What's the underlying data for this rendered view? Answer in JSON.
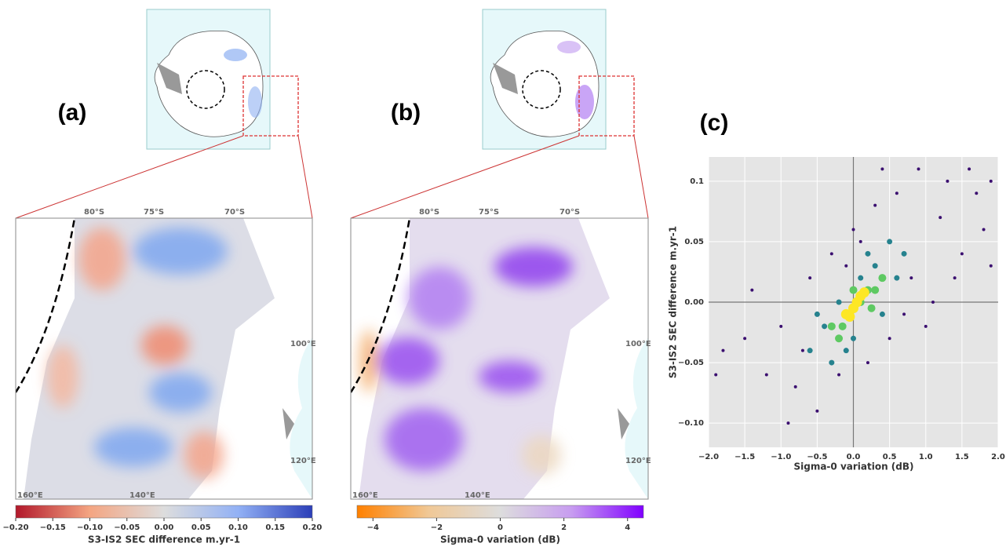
{
  "panels": [
    "(a)",
    "(b)",
    "(c)"
  ],
  "maps": [
    {
      "lat_labels": [
        "80°S",
        "75°S",
        "70°S"
      ],
      "lon_labels": [
        "100°E",
        "120°E",
        "160°E",
        "140°E"
      ],
      "colorbar": {
        "label": "S3-IS2 SEC difference m.yr-1",
        "lim": [
          -0.2,
          0.2
        ],
        "colors": [
          "#b2182b",
          "#f4a582",
          "#dddddd",
          "#92b1f5",
          "#2c3fb8"
        ],
        "ticks": [
          {
            "value": -0.2,
            "label": "−0.20"
          },
          {
            "value": -0.15,
            "label": "−0.15"
          },
          {
            "value": -0.1,
            "label": "−0.10"
          },
          {
            "value": -0.05,
            "label": "−0.05"
          },
          {
            "value": 0,
            "label": "0.00"
          },
          {
            "value": 0.05,
            "label": "0.05"
          },
          {
            "value": 0.1,
            "label": "0.10"
          },
          {
            "value": 0.15,
            "label": "0.15"
          },
          {
            "value": 0.2,
            "label": "0.20"
          }
        ]
      }
    },
    {
      "lat_labels": [
        "80°S",
        "75°S",
        "70°S"
      ],
      "lon_labels": [
        "100°E",
        "120°E",
        "160°E",
        "140°E"
      ],
      "colorbar": {
        "label": "Sigma-0 variation (dB)",
        "lim": [
          -4.5,
          4.5
        ],
        "colors": [
          "#ff8000",
          "#f0c896",
          "#dddddd",
          "#c79cf0",
          "#8000ff"
        ],
        "ticks": [
          {
            "value": -4,
            "label": "−4"
          },
          {
            "value": -2,
            "label": "−2"
          },
          0,
          2,
          4
        ]
      }
    }
  ],
  "chart_data": {
    "type": "scatter",
    "xlabel": "Sigma-0 variation (dB)",
    "ylabel": "S3-IS2 SEC difference m.yr-1",
    "xlim": [
      -2,
      2
    ],
    "ylim": [
      -0.12,
      0.12
    ],
    "grid": true,
    "hline": 0,
    "vline": 0,
    "xticks": [
      {
        "value": -2,
        "label": "−2.0"
      },
      {
        "value": -1.5,
        "label": "−1.5"
      },
      {
        "value": -1,
        "label": "−1.0"
      },
      {
        "value": -0.5,
        "label": "−0.5"
      },
      {
        "value": 0,
        "label": "0.0"
      },
      0.5,
      {
        "value": 1,
        "label": "1.0"
      },
      1.5,
      {
        "value": 2,
        "label": "2.0"
      }
    ],
    "yticks": [
      {
        "value": -0.1,
        "label": "−0.10"
      },
      {
        "value": -0.05,
        "label": "−0.05"
      },
      {
        "value": 0,
        "label": "0.00"
      },
      0.05,
      0.1
    ],
    "series": [
      {
        "color": "#3b0f70",
        "x": [
          -1.8,
          -1.5,
          -1.2,
          -1.0,
          -0.8,
          -0.6,
          -0.5,
          -0.3,
          -0.2,
          0.0,
          0.2,
          0.3,
          0.5,
          0.6,
          0.8,
          0.9,
          1.0,
          1.2,
          1.3,
          1.5,
          1.6,
          1.8,
          1.9,
          -1.9,
          -1.4,
          -0.9,
          1.1,
          1.7,
          0.4,
          -0.1,
          -0.7,
          0.7,
          1.4,
          1.9,
          0.1
        ],
        "y": [
          -0.04,
          -0.03,
          -0.06,
          -0.02,
          -0.07,
          0.02,
          -0.09,
          0.04,
          -0.06,
          0.06,
          -0.05,
          0.08,
          -0.03,
          0.09,
          0.02,
          0.11,
          -0.02,
          0.07,
          0.1,
          0.04,
          0.11,
          0.06,
          0.03,
          -0.06,
          0.01,
          -0.1,
          0.0,
          0.09,
          0.11,
          0.03,
          -0.04,
          -0.01,
          0.02,
          0.1,
          0.05
        ]
      },
      {
        "color": "#26828e",
        "x": [
          -0.6,
          -0.4,
          -0.3,
          -0.2,
          0.0,
          0.1,
          0.3,
          0.4,
          0.6,
          0.7,
          -0.5,
          0.2,
          0.5,
          -0.1
        ],
        "y": [
          -0.04,
          -0.02,
          -0.05,
          0.0,
          -0.03,
          0.02,
          0.03,
          -0.01,
          0.02,
          0.04,
          -0.01,
          0.04,
          0.05,
          -0.04
        ]
      },
      {
        "color": "#5ec962",
        "x": [
          -0.3,
          -0.2,
          -0.1,
          0.1,
          0.2,
          0.3,
          0.4,
          0.0,
          -0.15,
          0.25
        ],
        "y": [
          -0.02,
          -0.03,
          -0.01,
          0.0,
          0.01,
          0.01,
          0.02,
          0.01,
          -0.02,
          -0.005
        ]
      },
      {
        "color": "#fde725",
        "x": [
          -0.1,
          0.0,
          0.1,
          0.05,
          0.15,
          -0.05
        ],
        "y": [
          -0.01,
          -0.005,
          0.005,
          0.0,
          0.008,
          -0.012
        ]
      }
    ]
  }
}
